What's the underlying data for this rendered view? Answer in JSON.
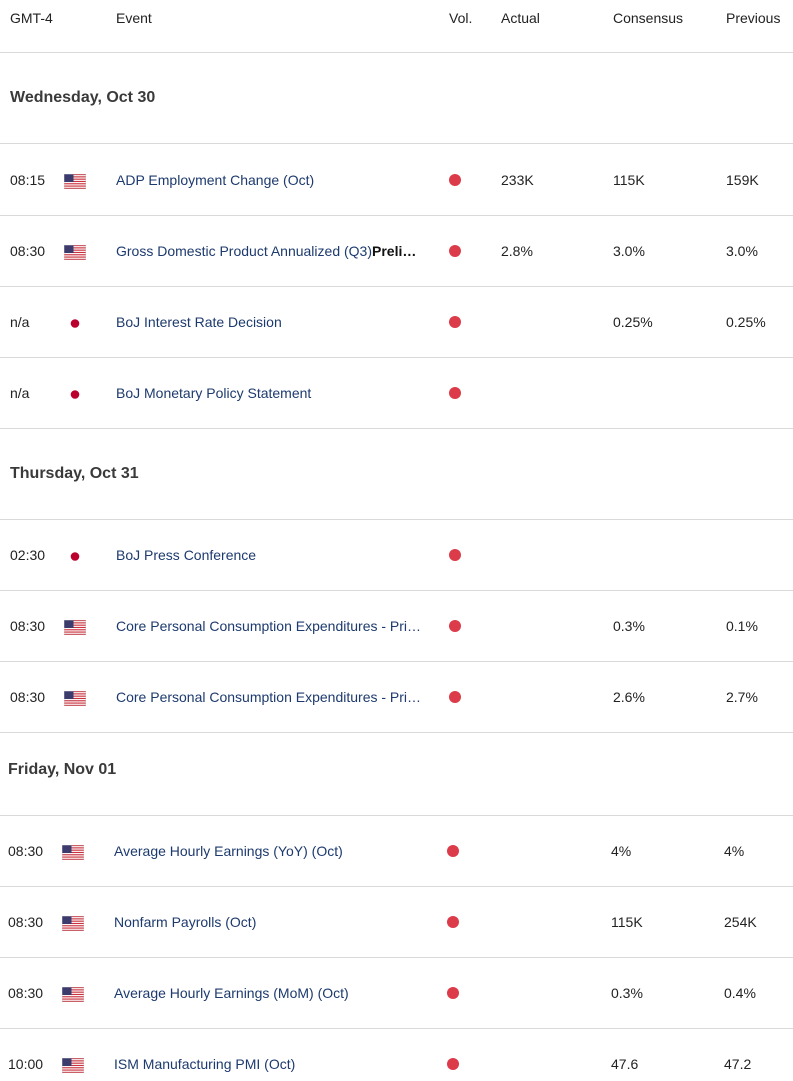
{
  "header": {
    "timezone": "GMT-4",
    "event": "Event",
    "vol": "Vol.",
    "actual": "Actual",
    "consensus": "Consensus",
    "previous": "Previous"
  },
  "colors": {
    "volatility_high": "#dc3b4a",
    "event_text": "#1d3a6e",
    "divider": "#d9d9d9"
  },
  "days": [
    {
      "label": "Wednesday, Oct 30",
      "events": [
        {
          "time": "08:15",
          "flag": "us-flag-icon",
          "event": "ADP Employment Change (Oct)",
          "event_bold": "",
          "actual": "233K",
          "consensus": "115K",
          "previous": "159K"
        },
        {
          "time": "08:30",
          "flag": "us-flag-icon",
          "event": "Gross Domestic Product Annualized (Q3)",
          "event_bold": "Preli…",
          "actual": "2.8%",
          "consensus": "3.0%",
          "previous": "3.0%"
        },
        {
          "time": "n/a",
          "flag": "jp-flag-icon",
          "event": "BoJ Interest Rate Decision",
          "event_bold": "",
          "actual": "",
          "consensus": "0.25%",
          "previous": "0.25%"
        },
        {
          "time": "n/a",
          "flag": "jp-flag-icon",
          "event": "BoJ Monetary Policy Statement",
          "event_bold": "",
          "actual": "",
          "consensus": "",
          "previous": ""
        }
      ]
    },
    {
      "label": "Thursday, Oct 31",
      "events": [
        {
          "time": "02:30",
          "flag": "jp-flag-icon",
          "event": "BoJ Press Conference",
          "event_bold": "",
          "actual": "",
          "consensus": "",
          "previous": ""
        },
        {
          "time": "08:30",
          "flag": "us-flag-icon",
          "event": "Core Personal Consumption Expenditures - Pri…",
          "event_bold": "",
          "actual": "",
          "consensus": "0.3%",
          "previous": "0.1%"
        },
        {
          "time": "08:30",
          "flag": "us-flag-icon",
          "event": "Core Personal Consumption Expenditures - Pri…",
          "event_bold": "",
          "actual": "",
          "consensus": "2.6%",
          "previous": "2.7%"
        }
      ]
    },
    {
      "label": "Friday, Nov 01",
      "events": [
        {
          "time": "08:30",
          "flag": "us-flag-icon",
          "event": "Average Hourly Earnings (YoY) (Oct)",
          "event_bold": "",
          "actual": "",
          "consensus": "4%",
          "previous": "4%"
        },
        {
          "time": "08:30",
          "flag": "us-flag-icon",
          "event": "Nonfarm Payrolls (Oct)",
          "event_bold": "",
          "actual": "",
          "consensus": "115K",
          "previous": "254K"
        },
        {
          "time": "08:30",
          "flag": "us-flag-icon",
          "event": "Average Hourly Earnings (MoM) (Oct)",
          "event_bold": "",
          "actual": "",
          "consensus": "0.3%",
          "previous": "0.4%"
        },
        {
          "time": "10:00",
          "flag": "us-flag-icon",
          "event": "ISM Manufacturing PMI (Oct)",
          "event_bold": "",
          "actual": "",
          "consensus": "47.6",
          "previous": "47.2"
        }
      ]
    }
  ]
}
